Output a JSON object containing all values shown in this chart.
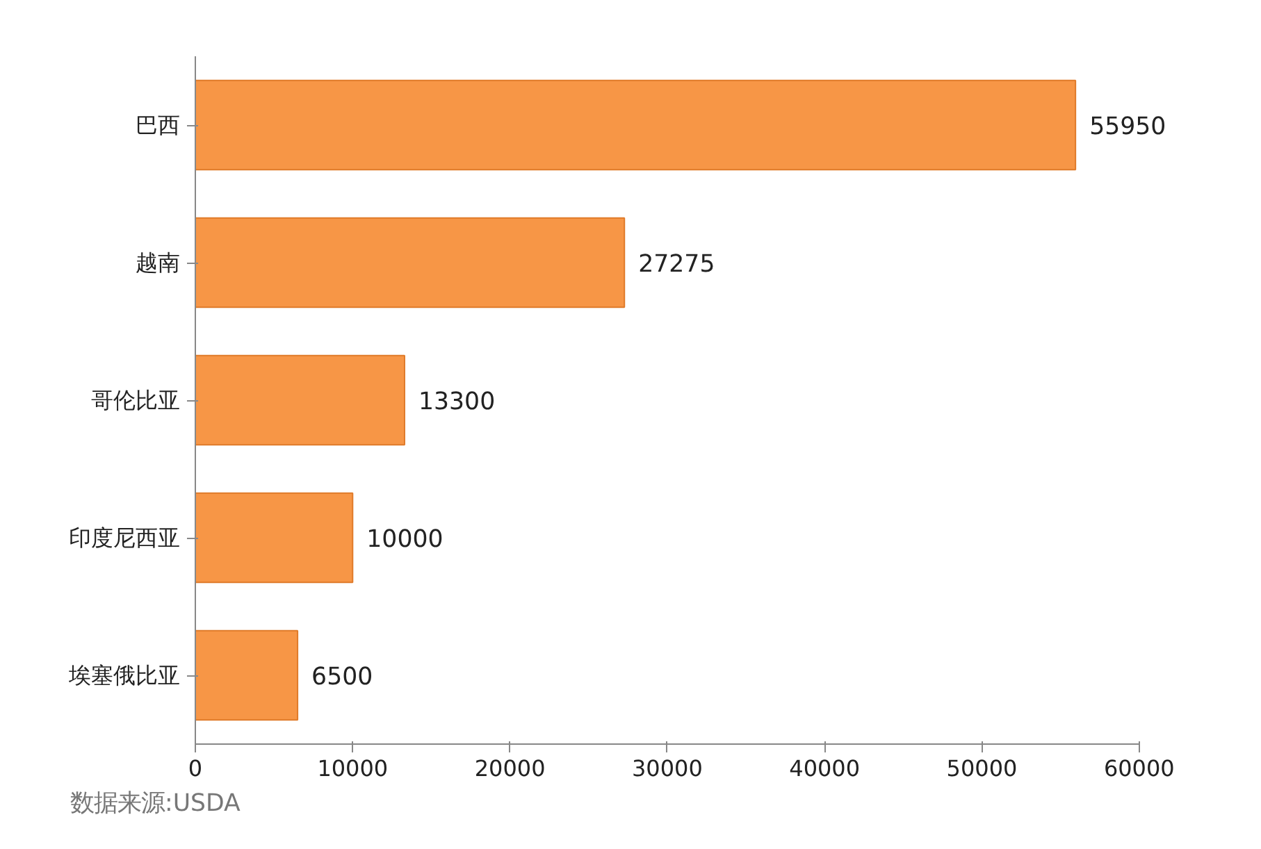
{
  "chart_data": {
    "type": "bar",
    "orientation": "horizontal",
    "categories": [
      "巴西",
      "越南",
      "哥伦比亚",
      "印度尼西亚",
      "埃塞俄比亚"
    ],
    "values": [
      55950,
      27275,
      13300,
      10000,
      6500
    ],
    "color": "#f79646",
    "data_labels": true,
    "xlim": [
      0,
      60000
    ],
    "xticks": [
      0,
      10000,
      20000,
      30000,
      40000,
      50000,
      60000
    ],
    "grid": false,
    "annotations": [
      "数据来源:USDA"
    ]
  }
}
